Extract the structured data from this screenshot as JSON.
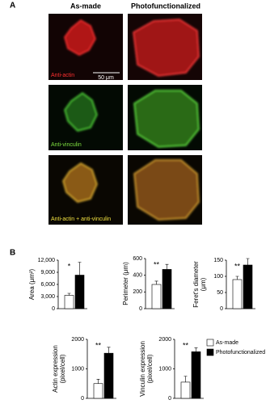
{
  "panel_a": {
    "label": "A",
    "columns": [
      "As-made",
      "Photofunctionalized"
    ],
    "rows": [
      "Anti-actin",
      "Anti-vinculin",
      "Anti-actin + anti-vinculin"
    ],
    "scale_bar": "50 μm"
  },
  "panel_b_label": "B",
  "legend": {
    "names": [
      "As-made",
      "Photofunctionalized"
    ],
    "colors": [
      "#ffffff",
      "#000000"
    ]
  },
  "chart_data": [
    {
      "type": "bar",
      "ylabel": [
        "Area (μm²)"
      ],
      "values": [
        3300,
        8300
      ],
      "errors": [
        500,
        3200
      ],
      "annotation": "*",
      "ylim": [
        0,
        12000
      ],
      "yticks": [
        0,
        {
          "value": 3000,
          "label": "3,000"
        },
        {
          "value": 6000,
          "label": "6,000"
        },
        {
          "value": 9000,
          "label": "9,000"
        },
        {
          "value": 12000,
          "label": "12,000"
        }
      ]
    },
    {
      "type": "bar",
      "ylabel": [
        "Perimeter (μm)"
      ],
      "values": [
        290,
        470
      ],
      "errors": [
        40,
        60
      ],
      "annotation": "**",
      "ylim": [
        0,
        600
      ],
      "yticks": [
        0,
        200,
        400,
        600
      ]
    },
    {
      "type": "bar",
      "ylabel": [
        "Feret's diameter",
        "(μm)"
      ],
      "values": [
        90,
        135
      ],
      "errors": [
        10,
        20
      ],
      "annotation": "**",
      "ylim": [
        0,
        150
      ],
      "yticks": [
        0,
        50,
        100,
        150
      ]
    },
    {
      "type": "bar",
      "ylabel": [
        "Actin expression",
        "(pixel/cell)"
      ],
      "values": [
        500,
        1530
      ],
      "errors": [
        150,
        200
      ],
      "annotation": "**",
      "ylim": [
        0,
        2000
      ],
      "yticks": [
        0,
        1000,
        2000
      ]
    },
    {
      "type": "bar",
      "ylabel": [
        "Vinculin expression",
        "(pixel/cell)"
      ],
      "values": [
        550,
        1580
      ],
      "errors": [
        200,
        130
      ],
      "annotation": "**",
      "ylim": [
        0,
        2000
      ],
      "yticks": [
        0,
        1000,
        2000
      ]
    }
  ]
}
